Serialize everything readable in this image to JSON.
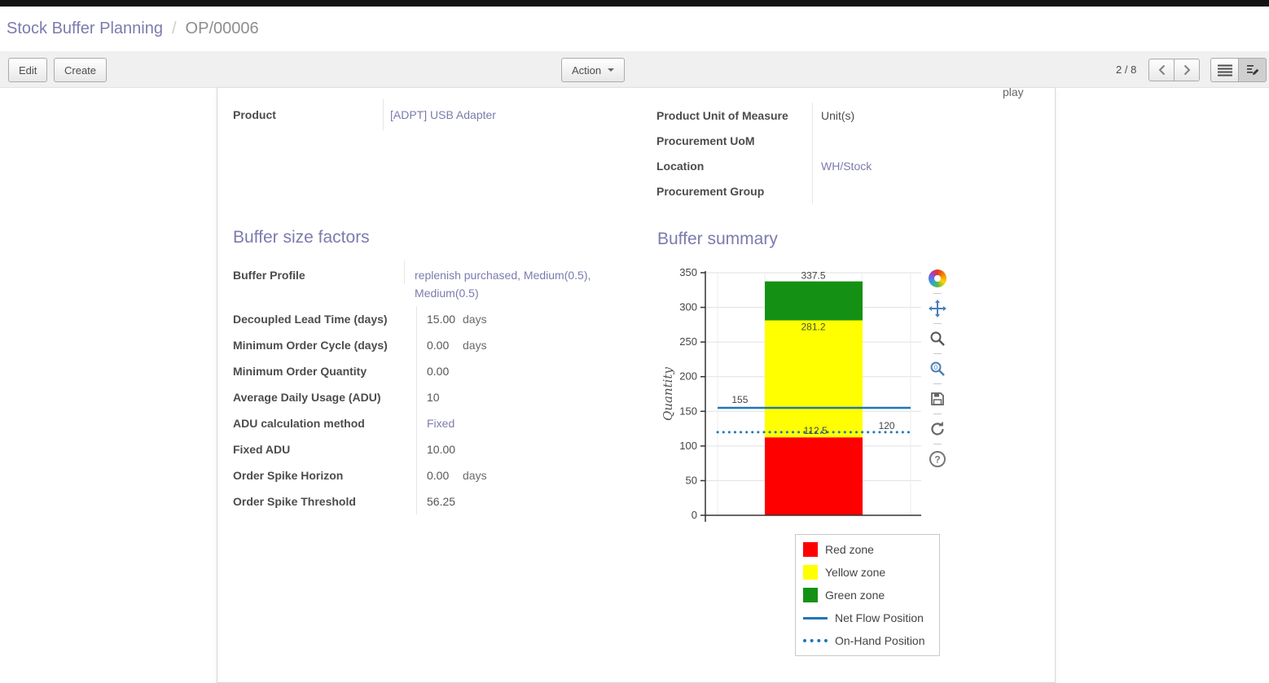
{
  "colors": {
    "accent": "#7c7bad",
    "line_blue": "#1f77b4"
  },
  "breadcrumb": {
    "primary": "Stock Buffer Planning",
    "separator": "/",
    "current": "OP/00006"
  },
  "toolbar": {
    "edit_label": "Edit",
    "create_label": "Create",
    "action_label": "Action",
    "pager": "2 / 8"
  },
  "sheet": {
    "clipped_fragment": "play",
    "product_group": {
      "rows": [
        {
          "label": "Product",
          "value": "[ADPT] USB Adapter"
        }
      ]
    },
    "uom_group": {
      "rows": [
        {
          "label": "Product Unit of Measure",
          "value": "Unit(s)"
        },
        {
          "label": "Procurement UoM",
          "value": ""
        },
        {
          "label": "Location",
          "value": "WH/Stock"
        },
        {
          "label": "Procurement Group",
          "value": ""
        }
      ]
    },
    "factors": {
      "title": "Buffer size factors",
      "rows": [
        {
          "label": "Buffer Profile",
          "value": "replenish purchased, Medium(0.5), Medium(0.5)",
          "suffix": ""
        },
        {
          "label": "Decoupled Lead Time (days)",
          "value": "15.00",
          "suffix": "days"
        },
        {
          "label": "Minimum Order Cycle (days)",
          "value": "0.00",
          "suffix": "days"
        },
        {
          "label": "Minimum Order Quantity",
          "value": "0.00",
          "suffix": ""
        },
        {
          "label": "Average Daily Usage (ADU)",
          "value": "10",
          "suffix": ""
        },
        {
          "label": "ADU calculation method",
          "value": "Fixed",
          "suffix": ""
        },
        {
          "label": "Fixed ADU",
          "value": "10.00",
          "suffix": ""
        },
        {
          "label": "Order Spike Horizon",
          "value": "0.00",
          "suffix": "days"
        },
        {
          "label": "Order Spike Threshold",
          "value": "56.25",
          "suffix": ""
        }
      ]
    },
    "summary": {
      "title": "Buffer summary"
    }
  },
  "chart_data": {
    "type": "bar",
    "title": "",
    "ylabel": "Quantity",
    "ylim": [
      0,
      350
    ],
    "yticks": [
      0,
      50,
      100,
      150,
      200,
      250,
      300,
      350
    ],
    "grid": true,
    "zones": [
      {
        "name": "Red zone",
        "from": 0,
        "to": 112.5,
        "color": "#fe0000"
      },
      {
        "name": "Yellow zone",
        "from": 112.5,
        "to": 281.25,
        "color": "#ffff00"
      },
      {
        "name": "Green zone",
        "from": 281.25,
        "to": 337.5,
        "color": "#149114"
      }
    ],
    "lines": [
      {
        "name": "Net Flow Position",
        "value": 155,
        "style": "solid",
        "color": "#1f77b4"
      },
      {
        "name": "On-Hand Position",
        "value": 120,
        "style": "dotted",
        "color": "#1f77b4"
      }
    ],
    "annotations": [
      {
        "text": "337.5",
        "xf": 0.5,
        "y": 346,
        "color": "#444444"
      },
      {
        "text": "281.2",
        "xf": 0.5,
        "y": 272,
        "color": "#445244"
      },
      {
        "text": "155",
        "xf": 0.16,
        "y": 167,
        "color": "#444444"
      },
      {
        "text": "112.5",
        "xf": 0.51,
        "y": 122,
        "color": "#444444"
      },
      {
        "text": "120",
        "xf": 0.84,
        "y": 129,
        "color": "#444444"
      }
    ],
    "legend": [
      "Red zone",
      "Yellow zone",
      "Green zone",
      "Net Flow Position",
      "On-Hand Position"
    ],
    "legend_position": "bottom-right"
  },
  "chart_toolbar": {
    "icons": [
      "chart-settings",
      "pan",
      "zoom",
      "zoom-reset",
      "save",
      "refresh",
      "help"
    ]
  }
}
